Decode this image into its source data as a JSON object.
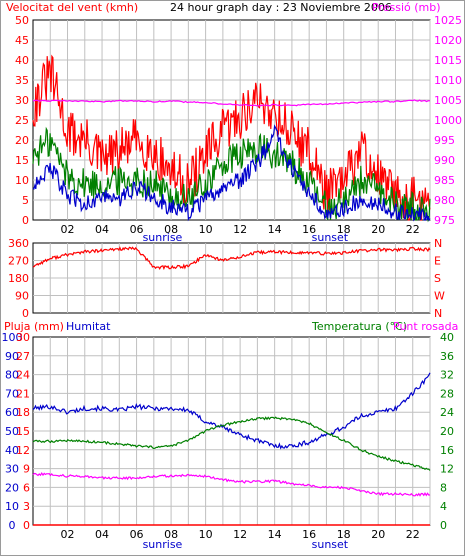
{
  "header": {
    "wind_title": "Velocitat del vent (kmh)",
    "day_title": "24 hour graph day : 23 Noviembre 2006",
    "pressure_title": "Pressió (mb)"
  },
  "colors": {
    "wind_speed": "#ff0000",
    "wind_gust_alt": "#e60000",
    "wind_avg": "#0000cc",
    "temp_green": "#008000",
    "pressure": "#ff00ff",
    "humidity": "#0000cc",
    "rain": "#ff0000",
    "frame": "#000000",
    "grid": "#c0c0c0"
  },
  "chart_data": [
    {
      "type": "line",
      "name_key": "wind_pressure_panel",
      "hours": [
        0,
        1,
        2,
        3,
        4,
        5,
        6,
        7,
        8,
        9,
        10,
        11,
        12,
        13,
        14,
        15,
        16,
        17,
        18,
        19,
        20,
        21,
        22,
        23
      ],
      "x_ticks": [
        "02",
        "04",
        "06",
        "08",
        "10",
        "12",
        "14",
        "16",
        "18",
        "20",
        "22"
      ],
      "y_left_ticks": [
        "0",
        "5",
        "10",
        "15",
        "20",
        "25",
        "30",
        "35",
        "40",
        "45",
        "50"
      ],
      "y_right_ticks": [
        "975",
        "980",
        "985",
        "990",
        "995",
        "1000",
        "1005",
        "1010",
        "1015",
        "1020",
        "1025"
      ],
      "ylim_left": [
        0,
        50
      ],
      "ylim_right": [
        975,
        1025
      ],
      "grid": true,
      "series": [
        {
          "key": "gust",
          "values": [
            28,
            37,
            22,
            20,
            15,
            17,
            20,
            17,
            12,
            9,
            16,
            22,
            26,
            30,
            27,
            22,
            17,
            7,
            9,
            18,
            11,
            6,
            5,
            3
          ]
        },
        {
          "key": "wind",
          "values": [
            16,
            20,
            11,
            9,
            9,
            10,
            10,
            9,
            6,
            5,
            9,
            14,
            16,
            18,
            16,
            14,
            9,
            3,
            5,
            10,
            7,
            4,
            3,
            2
          ]
        },
        {
          "key": "avg",
          "values": [
            9,
            13,
            6,
            4,
            6,
            5,
            8,
            6,
            3,
            2,
            5,
            8,
            10,
            14,
            22,
            13,
            6,
            2,
            3,
            5,
            4,
            2,
            1,
            1
          ]
        },
        {
          "key": "pressure",
          "values": [
            1004.8,
            1004.8,
            1004.8,
            1004.7,
            1004.6,
            1004.8,
            1004.8,
            1004.6,
            1004.7,
            1004.5,
            1004.4,
            1004.0,
            1003.8,
            1003.6,
            1003.8,
            1003.6,
            1003.9,
            1004.0,
            1004.3,
            1004.4,
            1004.6,
            1004.6,
            1004.9,
            1004.7
          ]
        }
      ],
      "markers": {
        "sunrise": "sunrise",
        "sunset": "sunset",
        "sunrise_hour": 7.5,
        "sunset_hour": 17.2
      }
    },
    {
      "type": "line",
      "name_key": "direction_panel",
      "hours": [
        0,
        1,
        2,
        3,
        4,
        5,
        6,
        7,
        8,
        9,
        10,
        11,
        12,
        13,
        14,
        15,
        16,
        17,
        18,
        19,
        20,
        21,
        22,
        23
      ],
      "x_ticks": [
        "02",
        "04",
        "06",
        "08",
        "10",
        "12",
        "14",
        "16",
        "18",
        "20",
        "22"
      ],
      "y_left_ticks": [
        "0",
        "90",
        "180",
        "270",
        "360"
      ],
      "y_right_ticks": [
        "N",
        "E",
        "S",
        "W",
        "N"
      ],
      "ylim": [
        0,
        360
      ],
      "grid": true,
      "series": [
        {
          "key": "direction",
          "values": [
            240,
            280,
            300,
            315,
            320,
            330,
            330,
            235,
            235,
            240,
            300,
            270,
            290,
            310,
            315,
            310,
            310,
            305,
            310,
            320,
            325,
            325,
            330,
            325
          ]
        }
      ]
    },
    {
      "type": "line",
      "name_key": "temp_hum_panel",
      "hours": [
        0,
        1,
        2,
        3,
        4,
        5,
        6,
        7,
        8,
        9,
        10,
        11,
        12,
        13,
        14,
        15,
        16,
        17,
        18,
        19,
        20,
        21,
        22,
        23
      ],
      "x_ticks": [
        "02",
        "04",
        "06",
        "08",
        "10",
        "12",
        "14",
        "16",
        "18",
        "20",
        "22"
      ],
      "labels": {
        "rain": "Pluja (mm)",
        "humidity": "Humitat",
        "temperature": "Temperatura (°C)",
        "dewpoint": "Punt rosada"
      },
      "y_hum_ticks": [
        "0",
        "10",
        "20",
        "30",
        "40",
        "50",
        "60",
        "70",
        "80",
        "90",
        "100"
      ],
      "y_rain_ticks": [
        "0",
        "3",
        "6",
        "9",
        "12",
        "15",
        "18",
        "21",
        "24",
        "27",
        "30"
      ],
      "y_temp_ticks": [
        "0",
        "4",
        "8",
        "12",
        "16",
        "20",
        "24",
        "28",
        "32",
        "36",
        "40"
      ],
      "ylim_hum": [
        0,
        100
      ],
      "ylim_temp": [
        0,
        40
      ],
      "grid": true,
      "series": [
        {
          "key": "humidity",
          "values": [
            62,
            63,
            60,
            62,
            62,
            61,
            63,
            62,
            62,
            61,
            55,
            52,
            48,
            45,
            42,
            42,
            44,
            48,
            52,
            58,
            60,
            62,
            70,
            80
          ]
        },
        {
          "key": "temperature",
          "values": [
            17.8,
            17.8,
            18.0,
            17.8,
            17.6,
            17.2,
            16.8,
            16.5,
            16.8,
            18.0,
            20.0,
            21.2,
            22.0,
            22.6,
            22.8,
            22.5,
            21.6,
            19.6,
            18.0,
            16.0,
            14.6,
            13.6,
            12.8,
            11.6
          ]
        },
        {
          "key": "dewpoint",
          "values": [
            10.8,
            10.8,
            10.4,
            10.4,
            10.0,
            10.0,
            10.0,
            10.4,
            10.4,
            10.6,
            10.4,
            9.6,
            9.2,
            9.2,
            9.4,
            8.8,
            8.4,
            8.0,
            8.0,
            7.2,
            6.6,
            6.6,
            6.4,
            6.6
          ]
        },
        {
          "key": "rain",
          "values": [
            0,
            0,
            0,
            0,
            0,
            0,
            0,
            0,
            0,
            0,
            0,
            0,
            0,
            0,
            0,
            0,
            0,
            0,
            0,
            0,
            0,
            0,
            0,
            0
          ]
        }
      ],
      "markers": {
        "sunrise": "sunrise",
        "sunset": "sunset",
        "sunrise_hour": 7.5,
        "sunset_hour": 17.2
      }
    }
  ]
}
